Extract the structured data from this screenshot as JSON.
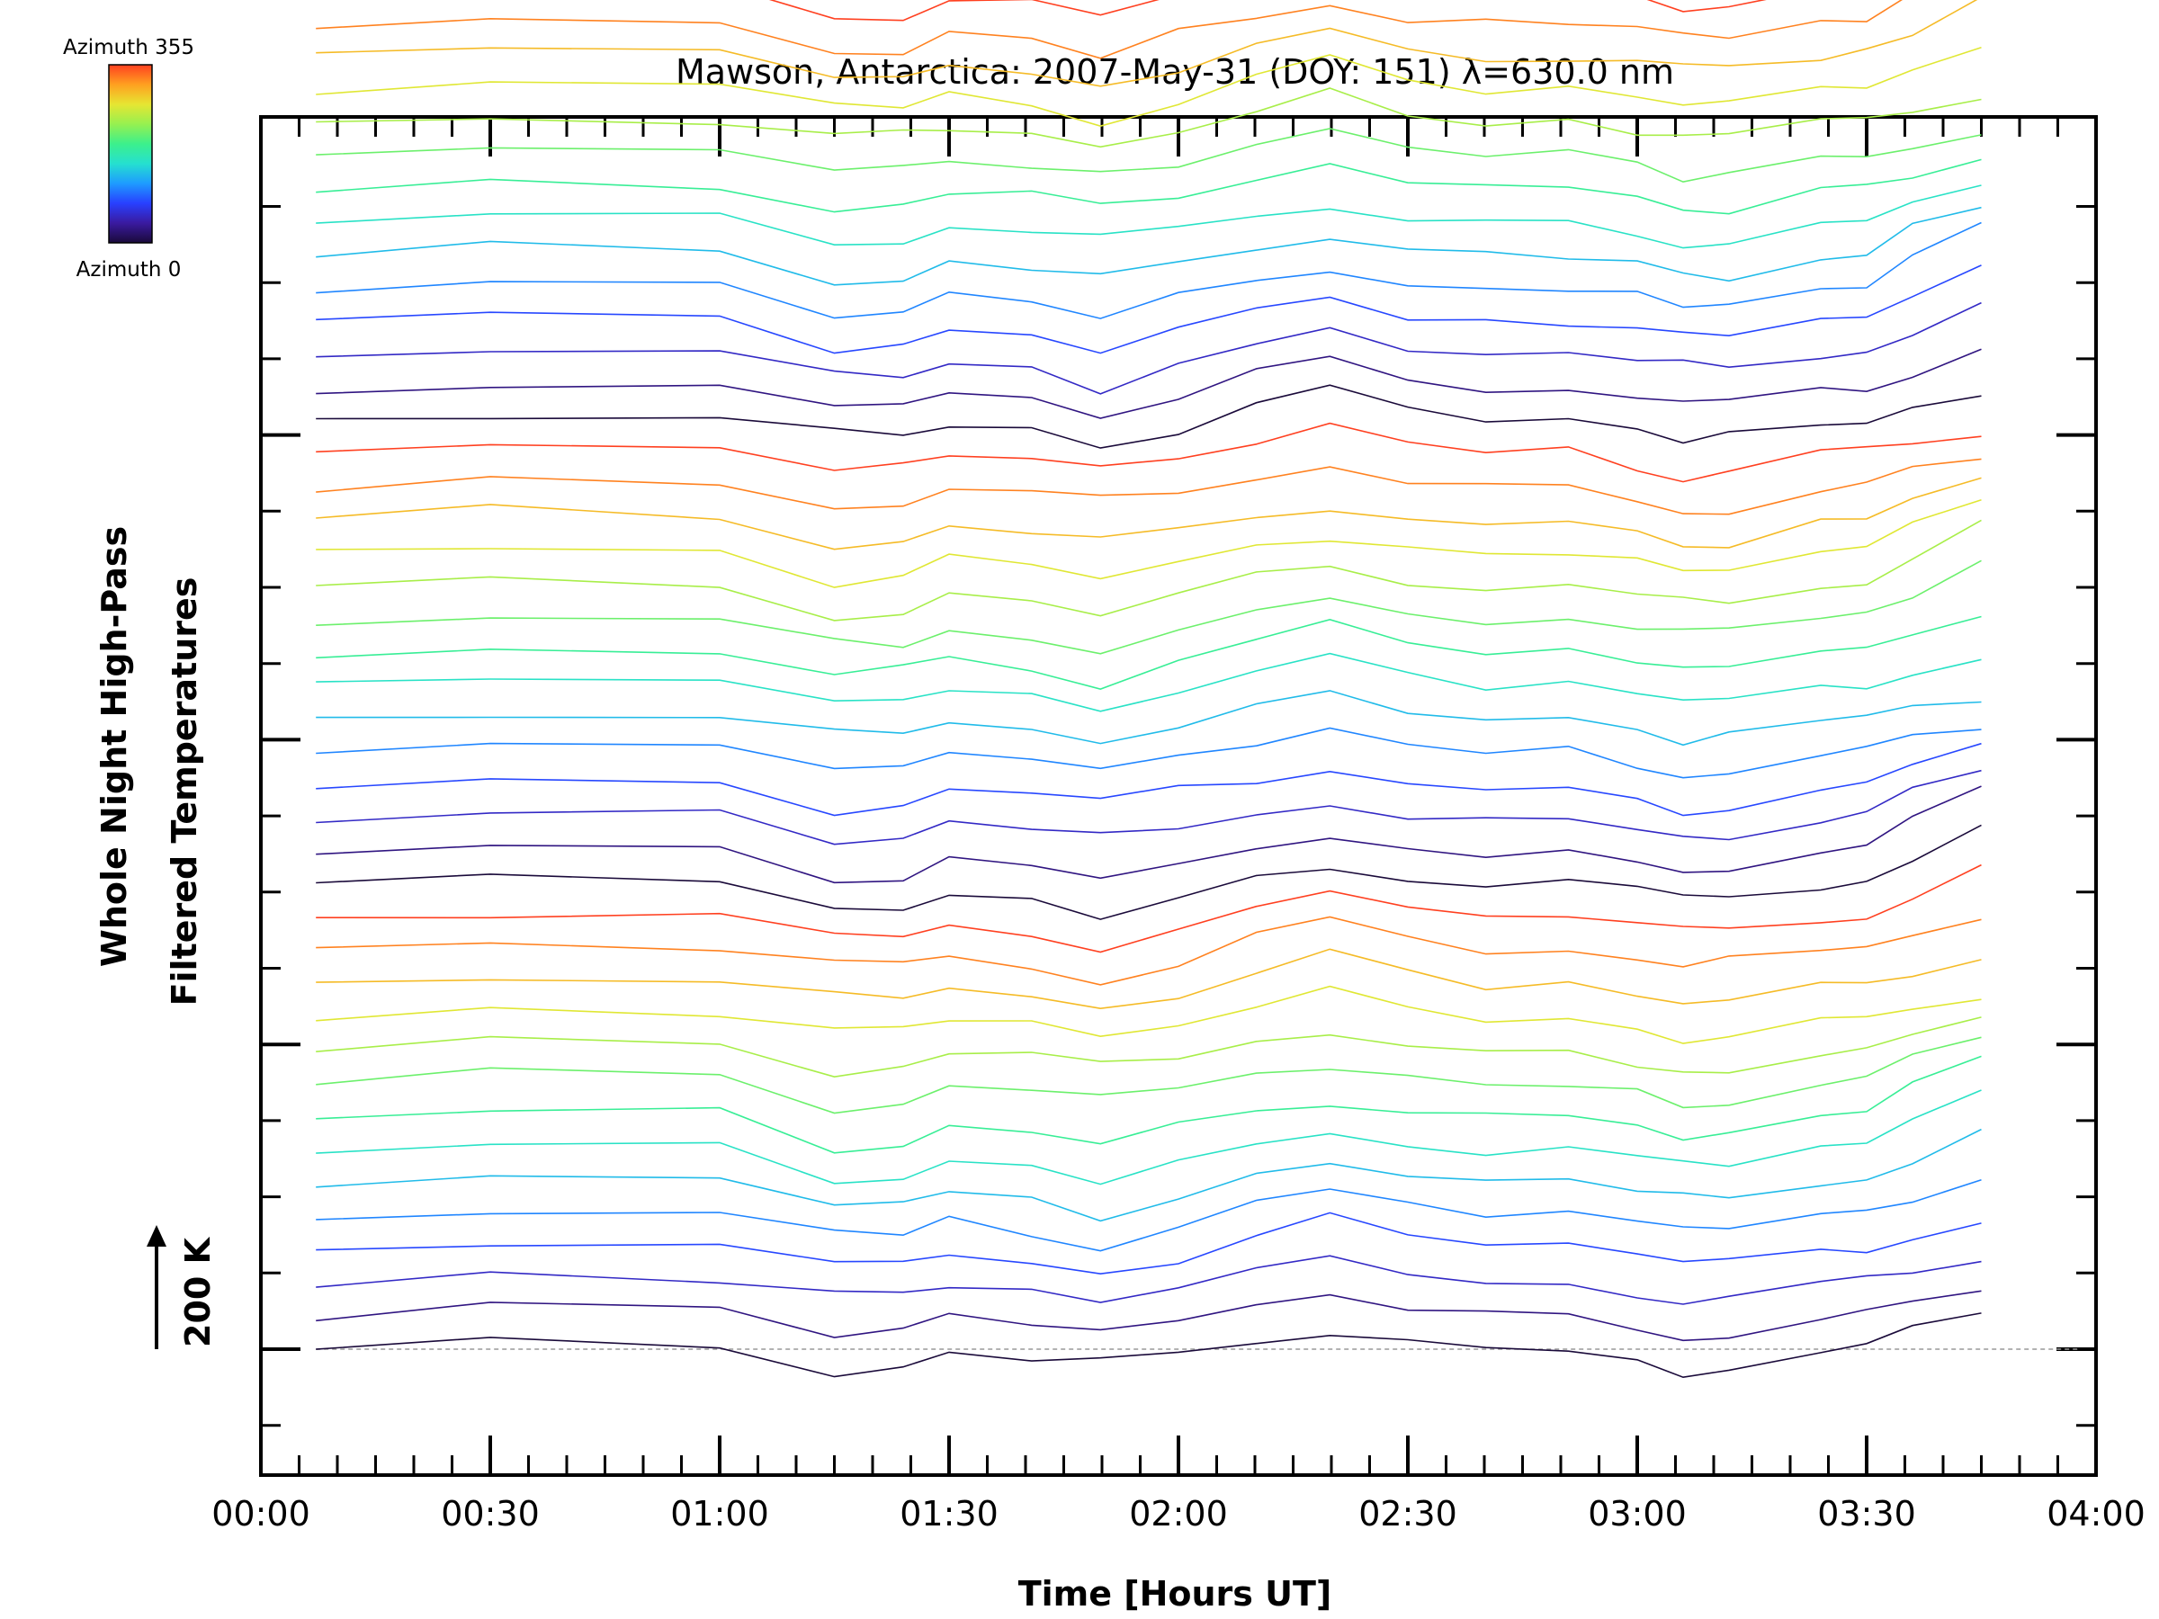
{
  "chart_data": {
    "type": "line",
    "title": "Mawson, Antarctica: 2007-May-31 (DOY: 151) λ=630.0 nm",
    "xlabel": "Time [Hours UT]",
    "ylabel_lines": [
      "Whole Night High-Pass",
      "Filtered Temperatures"
    ],
    "x_ticks": [
      "00:00",
      "00:30",
      "01:00",
      "01:30",
      "02:00",
      "02:30",
      "03:00",
      "03:30",
      "04:00"
    ],
    "xlim_hours": [
      0,
      4
    ],
    "scale_bar": {
      "label": "200 K",
      "kelvin": 200
    },
    "colorbar": {
      "top_label": "Azimuth 355",
      "bottom_label": "Azimuth 0",
      "azimuth_range": [
        0,
        355
      ]
    },
    "baseline_dashed": true,
    "colors": {
      "azimuth_scale": [
        "#1a0a3a",
        "#3a1aa0",
        "#2840ff",
        "#1e9bff",
        "#25e0d0",
        "#3cf08c",
        "#96f050",
        "#e6e632",
        "#ffa020",
        "#ff4020"
      ]
    },
    "series": {
      "count": 63,
      "azimuth_cycle_length": 14,
      "x_hours": [
        0.12,
        0.5,
        1.0,
        1.25,
        1.4,
        1.5,
        1.68,
        1.83,
        2.0,
        2.17,
        2.33,
        2.5,
        2.67,
        2.85,
        3.0,
        3.1,
        3.2,
        3.4,
        3.5,
        3.6,
        3.75
      ],
      "profile_K": [
        0,
        20,
        10,
        -55,
        -45,
        -10,
        -30,
        -60,
        -20,
        30,
        60,
        20,
        0,
        5,
        -20,
        -45,
        -40,
        0,
        10,
        55,
        110
      ],
      "spacing_K": 58,
      "jitter_K": 18
    }
  }
}
